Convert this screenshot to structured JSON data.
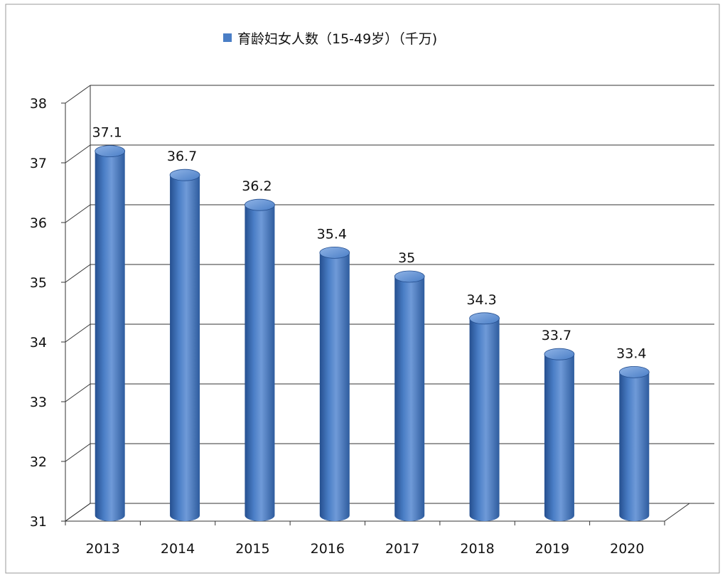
{
  "chart_data": {
    "type": "bar",
    "style": "3d-cylinder",
    "categories": [
      "2013",
      "2014",
      "2015",
      "2016",
      "2017",
      "2018",
      "2019",
      "2020"
    ],
    "series": [
      {
        "name": "育龄妇女人数（15-49岁）（千万)",
        "values": [
          37.1,
          36.7,
          36.2,
          35.4,
          35,
          34.3,
          33.7,
          33.4
        ],
        "value_labels": [
          "37.1",
          "36.7",
          "36.2",
          "35.4",
          "35",
          "34.3",
          "33.7",
          "33.4"
        ]
      }
    ],
    "ylim": [
      31,
      38
    ],
    "yticks": [
      "31",
      "32",
      "33",
      "34",
      "35",
      "36",
      "37",
      "38"
    ],
    "grid": true,
    "legend_position": "top",
    "colors": {
      "bar": "#4a7ec6",
      "bar_dark": "#254f8f",
      "bar_light": "#7fa6dd",
      "grid": "#333333",
      "frame": "#9a9a9a"
    }
  }
}
